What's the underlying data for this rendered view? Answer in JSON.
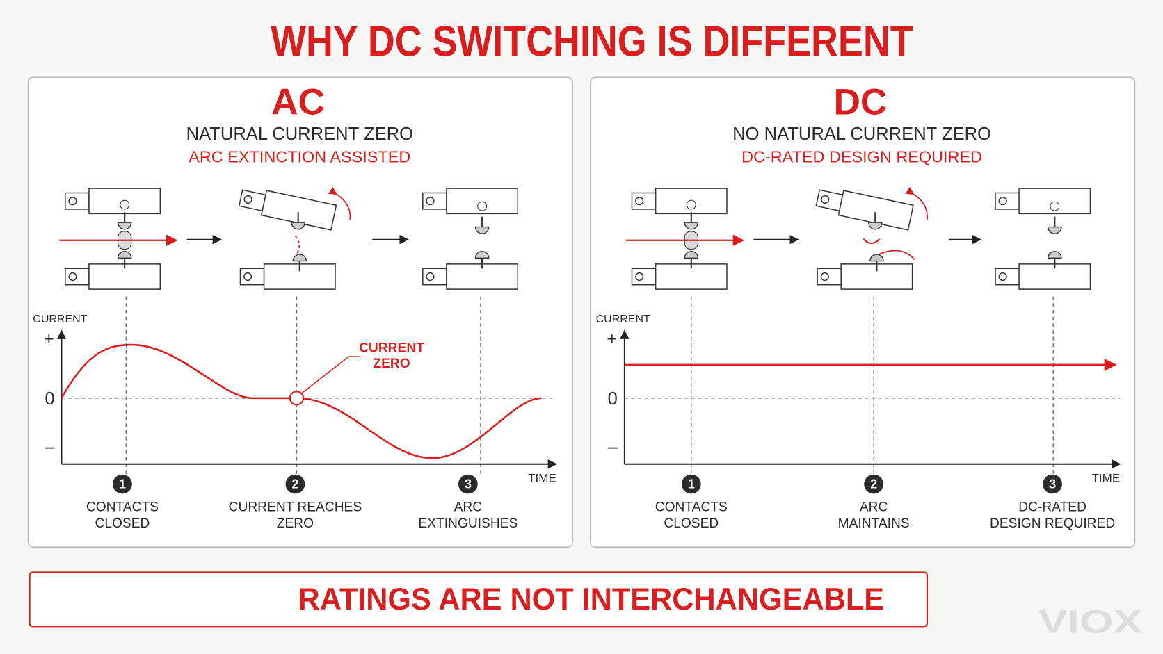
{
  "title": "WHY DC SWITCHING IS DIFFERENT",
  "panels": [
    {
      "heading": "AC",
      "subtitle": "NATURAL CURRENT ZERO",
      "note": "ARC EXTINCTION ASSISTED",
      "y_axis_label": "CURRENT",
      "plus": "+",
      "zero": "0",
      "minus": "–",
      "x_axis_label": "TIME",
      "annotation": [
        "CURRENT",
        "ZERO"
      ],
      "steps": [
        {
          "number": 1,
          "label": [
            "CONTACTS",
            "CLOSED"
          ]
        },
        {
          "number": 2,
          "label": [
            "CURRENT REACHES",
            "ZERO"
          ]
        },
        {
          "number": 3,
          "label": [
            "ARC",
            "EXTINGUISHES"
          ]
        }
      ]
    },
    {
      "heading": "DC",
      "subtitle": "NO NATURAL CURRENT ZERO",
      "note": "DC-RATED DESIGN REQUIRED",
      "y_axis_label": "CURRENT",
      "plus": "+",
      "zero": "0",
      "minus": "–",
      "x_axis_label": "TIME",
      "steps": [
        {
          "number": 1,
          "label": [
            "CONTACTS",
            "CLOSED"
          ]
        },
        {
          "number": 2,
          "label": [
            "ARC",
            "MAINTAINS"
          ]
        },
        {
          "number": 3,
          "label": [
            "DC-RATED",
            "DESIGN REQUIRED"
          ]
        }
      ]
    }
  ],
  "footer": "RATINGS ARE NOT INTERCHANGEABLE",
  "watermark": "VIOX"
}
